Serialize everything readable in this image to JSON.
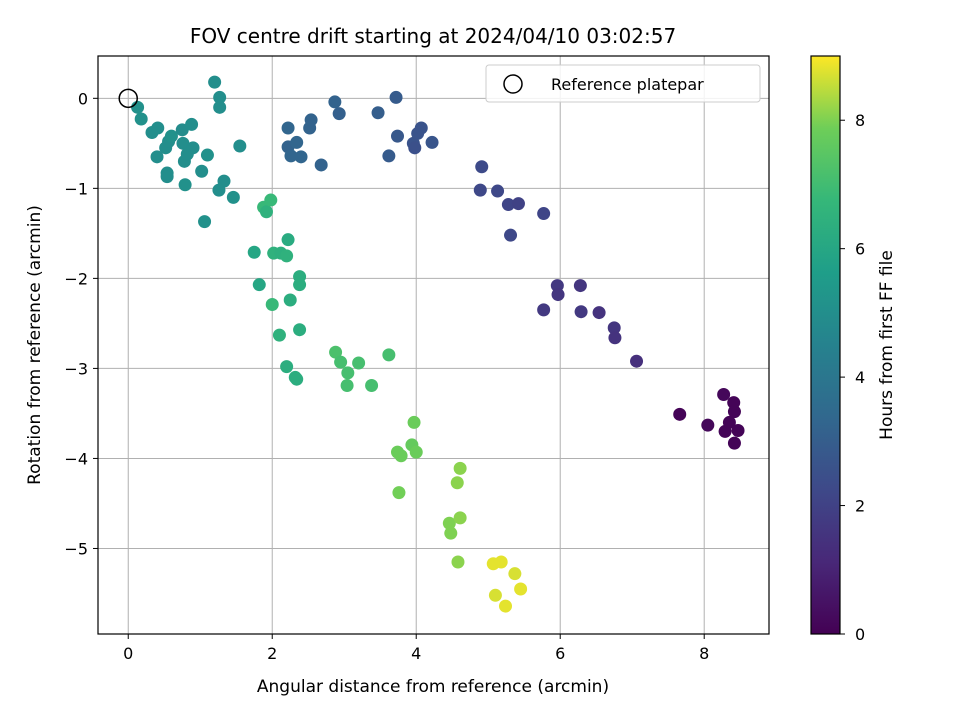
{
  "chart_data": {
    "type": "scatter",
    "title": "FOV centre drift starting at 2024/04/10 03:02:57",
    "xlabel": "Angular distance from reference (arcmin)",
    "ylabel": "Rotation from reference (arcmin)",
    "xlim": [
      -0.42,
      8.9
    ],
    "ylim": [
      -5.95,
      0.47
    ],
    "xticks": [
      0,
      2,
      4,
      6,
      8
    ],
    "xtick_labels": [
      "0",
      "2",
      "4",
      "6",
      "8"
    ],
    "yticks": [
      0,
      -1,
      -2,
      -3,
      -4,
      -5
    ],
    "ytick_labels": [
      "0",
      "−1",
      "−2",
      "−3",
      "−4",
      "−5"
    ],
    "grid": true,
    "legend": {
      "label": "Reference platepar",
      "placement": "top-right"
    },
    "reference": {
      "x": 0,
      "y": 0
    },
    "colorbar": {
      "label": "Hours from first FF file",
      "colormap": "viridis",
      "range": [
        0,
        9
      ],
      "ticks": [
        0,
        2,
        4,
        6,
        8
      ],
      "tick_labels": [
        "0",
        "2",
        "4",
        "6",
        "8"
      ]
    },
    "points": [
      [
        0.13,
        -0.1,
        5.1
      ],
      [
        0.18,
        -0.23,
        5.1
      ],
      [
        0.33,
        -0.38,
        5.0
      ],
      [
        0.41,
        -0.33,
        5.0
      ],
      [
        0.4,
        -0.65,
        5.0
      ],
      [
        0.52,
        -0.55,
        5.0
      ],
      [
        0.56,
        -0.48,
        5.0
      ],
      [
        0.6,
        -0.42,
        5.1
      ],
      [
        0.54,
        -0.83,
        5.0
      ],
      [
        0.54,
        -0.87,
        5.0
      ],
      [
        0.75,
        -0.35,
        4.9
      ],
      [
        0.76,
        -0.5,
        5.0
      ],
      [
        0.78,
        -0.7,
        5.0
      ],
      [
        0.82,
        -0.62,
        5.0
      ],
      [
        0.88,
        -0.29,
        5.0
      ],
      [
        0.9,
        -0.55,
        5.0
      ],
      [
        0.79,
        -0.96,
        5.1
      ],
      [
        1.02,
        -0.81,
        5.0
      ],
      [
        1.1,
        -0.63,
        5.1
      ],
      [
        1.2,
        0.18,
        5.0
      ],
      [
        1.27,
        0.01,
        5.0
      ],
      [
        1.27,
        -0.1,
        5.0
      ],
      [
        1.33,
        -0.92,
        5.0
      ],
      [
        1.26,
        -1.02,
        5.0
      ],
      [
        1.46,
        -1.1,
        5.1
      ],
      [
        1.55,
        -0.53,
        5.0
      ],
      [
        1.06,
        -1.37,
        5.1
      ],
      [
        1.75,
        -1.71,
        6.0
      ],
      [
        1.82,
        -2.07,
        6.0
      ],
      [
        1.88,
        -1.21,
        6.8
      ],
      [
        1.92,
        -1.26,
        6.5
      ],
      [
        1.98,
        -1.13,
        6.8
      ],
      [
        2.02,
        -1.72,
        6.5
      ],
      [
        2.12,
        -1.72,
        6.4
      ],
      [
        2.2,
        -1.75,
        6.5
      ],
      [
        2.22,
        -1.57,
        6.2
      ],
      [
        2.0,
        -2.29,
        6.8
      ],
      [
        2.1,
        -2.63,
        6.5
      ],
      [
        2.25,
        -2.24,
        6.3
      ],
      [
        2.38,
        -1.98,
        6.3
      ],
      [
        2.38,
        -2.07,
        6.3
      ],
      [
        2.38,
        -2.57,
        6.3
      ],
      [
        2.2,
        -2.98,
        6.3
      ],
      [
        2.32,
        -3.1,
        6.3
      ],
      [
        2.34,
        -3.12,
        6.3
      ],
      [
        2.88,
        -2.82,
        7.2
      ],
      [
        2.95,
        -2.93,
        7.1
      ],
      [
        3.05,
        -3.05,
        7.1
      ],
      [
        3.2,
        -2.94,
        7.1
      ],
      [
        3.04,
        -3.19,
        7.1
      ],
      [
        3.38,
        -3.19,
        7.1
      ],
      [
        3.62,
        -2.85,
        7.1
      ],
      [
        3.74,
        -3.93,
        7.8
      ],
      [
        3.79,
        -3.97,
        7.8
      ],
      [
        3.94,
        -3.85,
        7.7
      ],
      [
        3.97,
        -3.6,
        7.8
      ],
      [
        4.0,
        -3.93,
        7.8
      ],
      [
        3.76,
        -4.38,
        7.9
      ],
      [
        4.46,
        -4.72,
        8.0
      ],
      [
        4.48,
        -4.83,
        8.0
      ],
      [
        4.57,
        -4.27,
        8.1
      ],
      [
        4.61,
        -4.11,
        8.1
      ],
      [
        4.61,
        -4.66,
        8.1
      ],
      [
        4.58,
        -5.15,
        8.1
      ],
      [
        5.07,
        -5.17,
        8.8
      ],
      [
        5.18,
        -5.15,
        8.8
      ],
      [
        5.1,
        -5.52,
        8.7
      ],
      [
        5.24,
        -5.64,
        8.8
      ],
      [
        5.37,
        -5.28,
        8.7
      ],
      [
        5.45,
        -5.45,
        8.8
      ],
      [
        2.22,
        -0.33,
        3.3
      ],
      [
        2.22,
        -0.54,
        3.2
      ],
      [
        2.26,
        -0.64,
        3.3
      ],
      [
        2.34,
        -0.49,
        3.3
      ],
      [
        2.4,
        -0.65,
        3.3
      ],
      [
        2.52,
        -0.33,
        3.2
      ],
      [
        2.54,
        -0.24,
        3.2
      ],
      [
        2.68,
        -0.74,
        3.2
      ],
      [
        2.87,
        -0.04,
        3.2
      ],
      [
        2.93,
        -0.17,
        3.1
      ],
      [
        3.47,
        -0.16,
        3.0
      ],
      [
        3.62,
        -0.64,
        2.9
      ],
      [
        3.72,
        0.01,
        2.9
      ],
      [
        3.74,
        -0.42,
        2.8
      ],
      [
        3.96,
        -0.5,
        2.6
      ],
      [
        3.98,
        -0.55,
        2.5
      ],
      [
        4.02,
        -0.39,
        2.6
      ],
      [
        4.07,
        -0.33,
        2.6
      ],
      [
        4.22,
        -0.49,
        2.7
      ],
      [
        4.91,
        -0.76,
        2.3
      ],
      [
        4.89,
        -1.02,
        2.2
      ],
      [
        5.13,
        -1.03,
        2.2
      ],
      [
        5.28,
        -1.18,
        2.1
      ],
      [
        5.42,
        -1.17,
        2.0
      ],
      [
        5.31,
        -1.52,
        2.2
      ],
      [
        5.77,
        -1.28,
        2.1
      ],
      [
        5.96,
        -2.08,
        1.7
      ],
      [
        5.97,
        -2.18,
        1.6
      ],
      [
        5.77,
        -2.35,
        1.7
      ],
      [
        6.28,
        -2.08,
        1.6
      ],
      [
        6.29,
        -2.37,
        1.7
      ],
      [
        6.54,
        -2.38,
        1.5
      ],
      [
        6.75,
        -2.55,
        1.6
      ],
      [
        6.76,
        -2.66,
        1.5
      ],
      [
        7.06,
        -2.92,
        1.4
      ],
      [
        7.66,
        -3.51,
        0.1
      ],
      [
        8.05,
        -3.63,
        0.2
      ],
      [
        8.27,
        -3.29,
        0.2
      ],
      [
        8.29,
        -3.7,
        0.1
      ],
      [
        8.35,
        -3.6,
        0.1
      ],
      [
        8.41,
        -3.38,
        0.1
      ],
      [
        8.42,
        -3.48,
        0.1
      ],
      [
        8.42,
        -3.83,
        0.1
      ],
      [
        8.47,
        -3.69,
        0.1
      ]
    ]
  }
}
